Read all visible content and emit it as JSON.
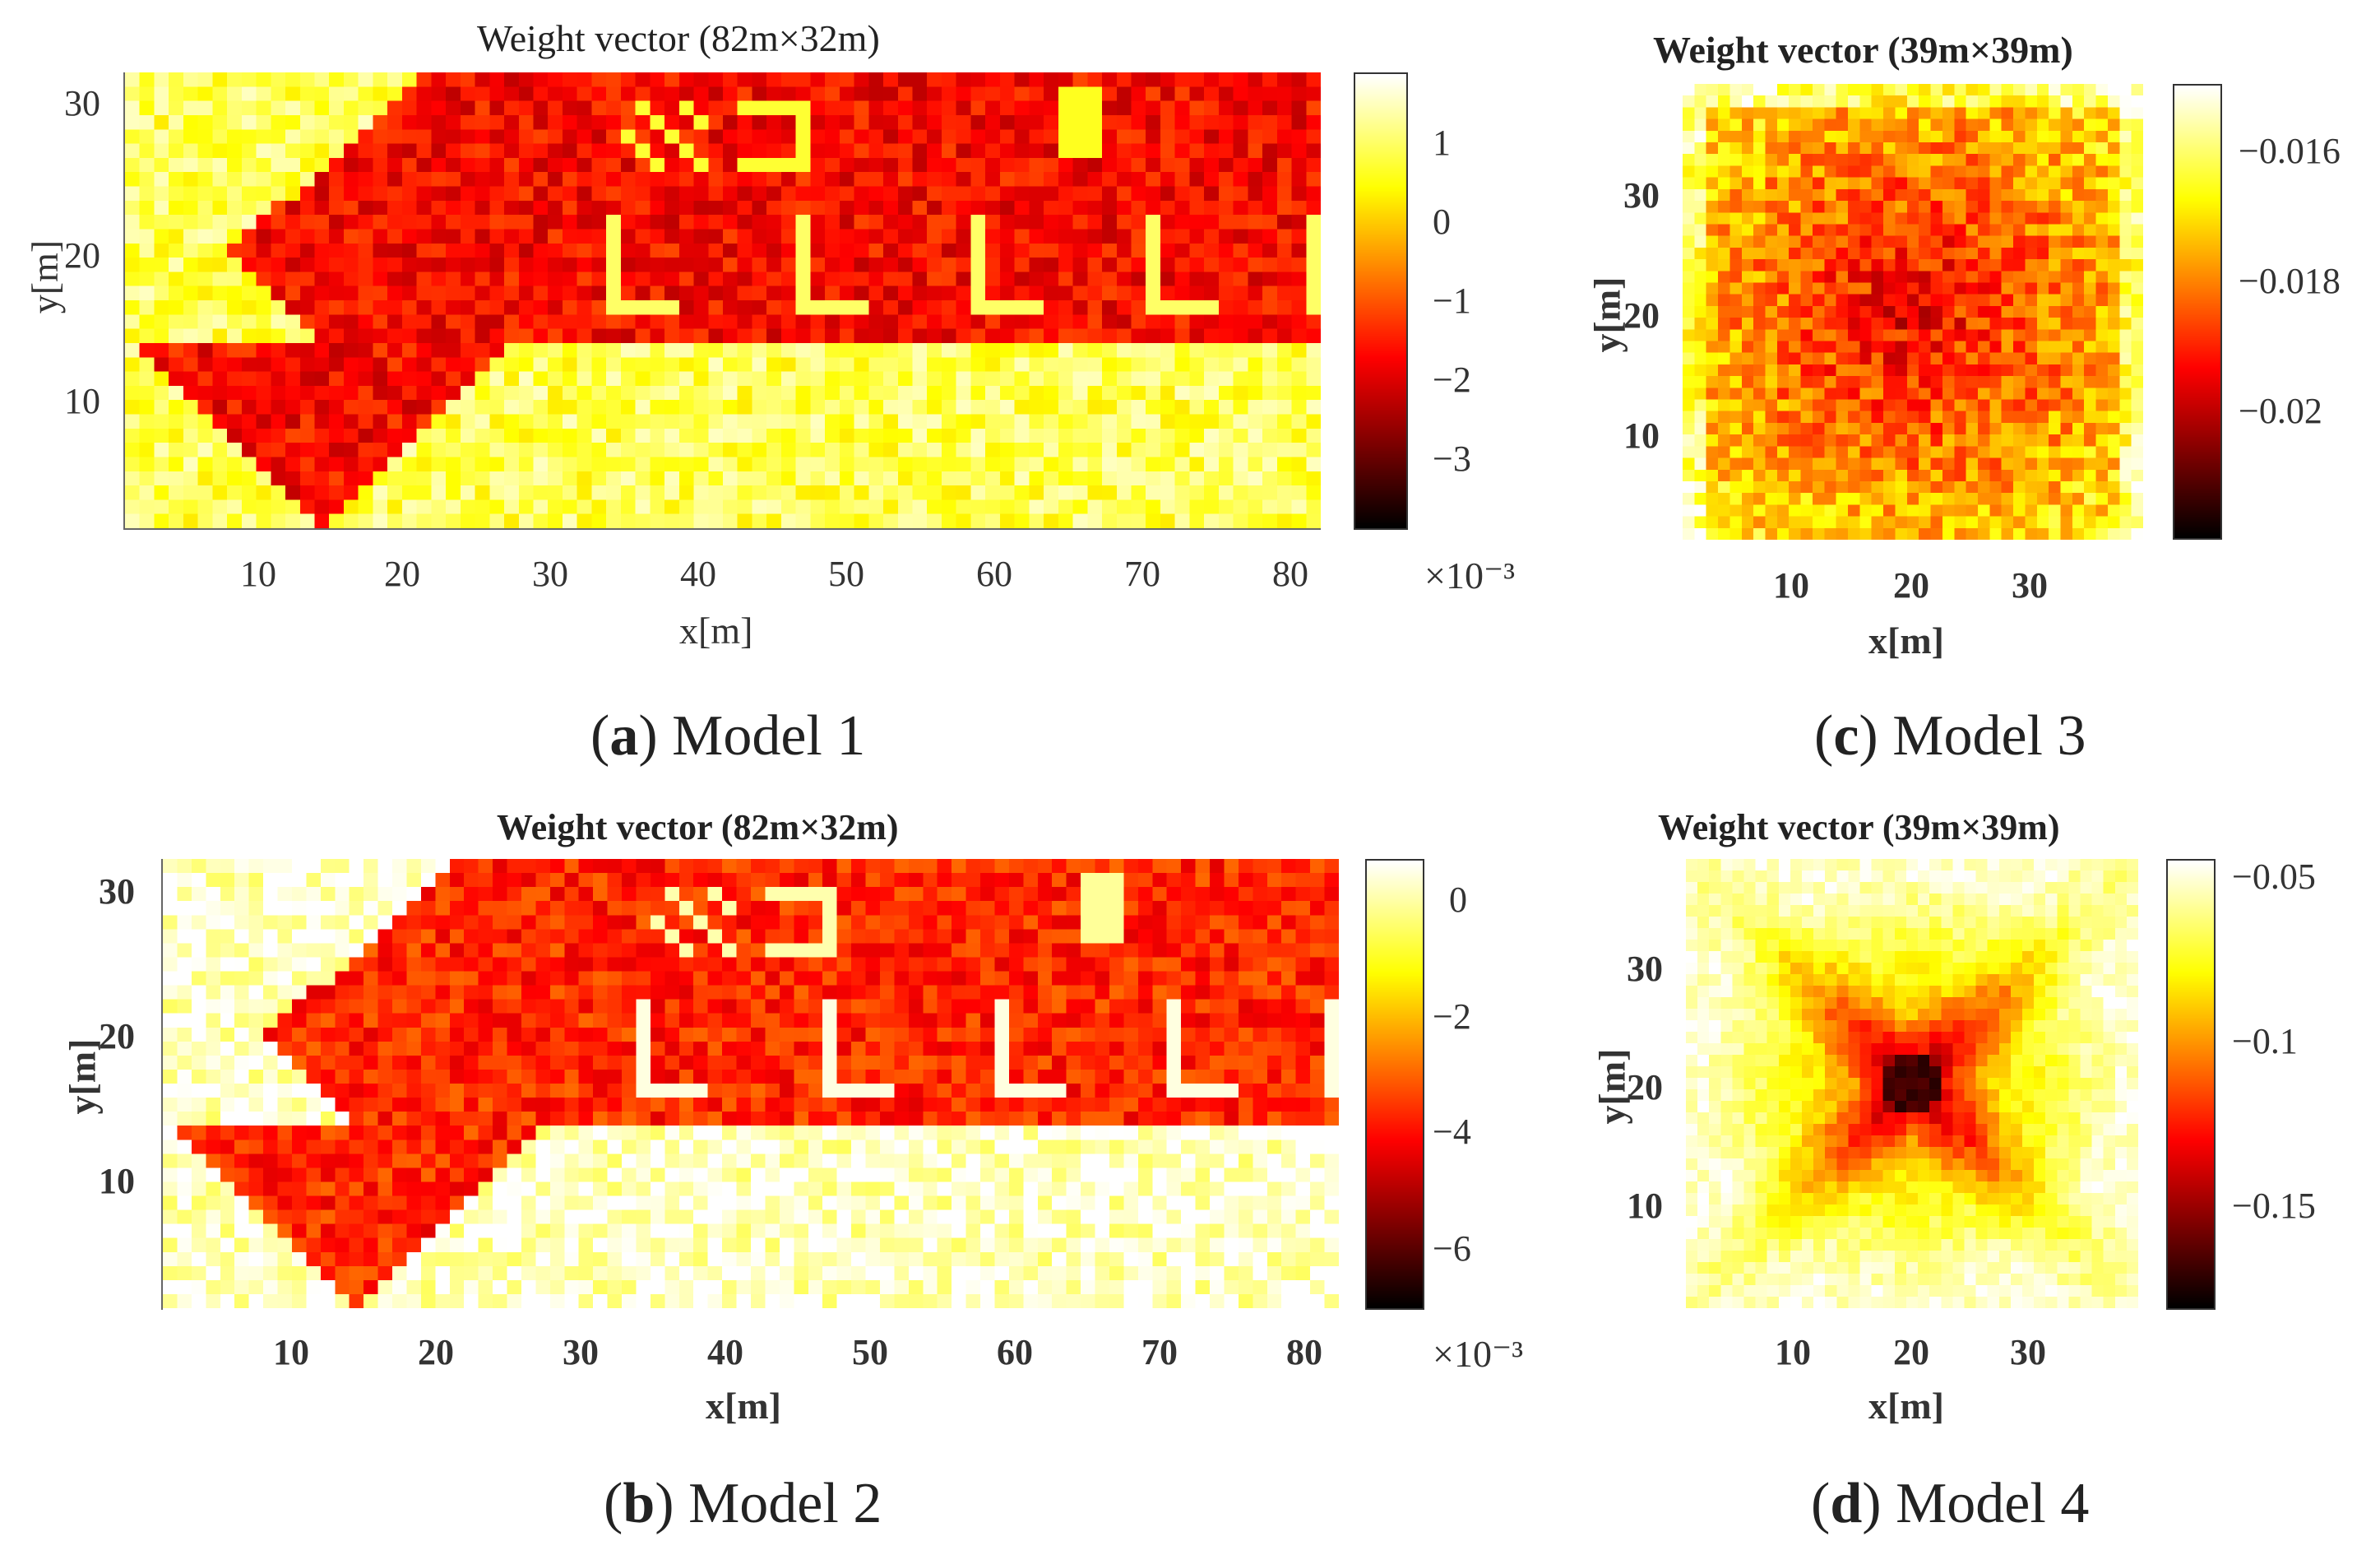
{
  "chart_data": [
    {
      "id": "a",
      "type": "heatmap",
      "title": "Weight vector (82m×32m)",
      "xlabel": "x[m]",
      "ylabel": "y[m]",
      "x_range": [
        1,
        82
      ],
      "y_range": [
        1,
        32
      ],
      "grid_size": [
        82,
        32
      ],
      "x_ticks": [
        10,
        20,
        30,
        40,
        50,
        60,
        70,
        80
      ],
      "y_ticks": [
        10,
        20,
        30
      ],
      "colorbar": {
        "ticks": [
          "1",
          "0",
          "−1",
          "−2",
          "−3"
        ],
        "tick_values": [
          1,
          0,
          -1,
          -2,
          -3
        ],
        "range": [
          -4,
          1.8
        ],
        "scale": "×10⁻³",
        "colormap": "hot"
      },
      "caption_letter": "a",
      "caption_text": " Model 1",
      "pattern": "layout"
    },
    {
      "id": "b",
      "type": "heatmap",
      "title": "Weight vector (82m×32m)",
      "xlabel": "x[m]",
      "ylabel": "y[m]",
      "x_range": [
        1,
        82
      ],
      "y_range": [
        1,
        32
      ],
      "grid_size": [
        82,
        32
      ],
      "x_ticks": [
        10,
        20,
        30,
        40,
        50,
        60,
        70,
        80
      ],
      "y_ticks": [
        10,
        20,
        30
      ],
      "colorbar": {
        "ticks": [
          "0",
          "−2",
          "−4",
          "−6"
        ],
        "tick_values": [
          0,
          -2,
          -4,
          -6
        ],
        "range": [
          -7,
          0.6
        ],
        "scale": "×10⁻³",
        "colormap": "hot"
      },
      "caption_letter": "b",
      "caption_text": " Model 2",
      "pattern": "layout"
    },
    {
      "id": "c",
      "type": "heatmap",
      "title": "Weight vector (39m×39m)",
      "xlabel": "x[m]",
      "ylabel": "y[m]",
      "x_range": [
        1,
        39
      ],
      "y_range": [
        1,
        39
      ],
      "grid_size": [
        39,
        39
      ],
      "x_ticks": [
        10,
        20,
        30
      ],
      "y_ticks": [
        10,
        20,
        30
      ],
      "colorbar": {
        "ticks": [
          "−0.016",
          "−0.018",
          "−0.02"
        ],
        "tick_values": [
          -0.016,
          -0.018,
          -0.02
        ],
        "range": [
          -0.0217,
          -0.0148
        ],
        "scale": "",
        "colormap": "hot"
      },
      "caption_letter": "c",
      "caption_text": " Model 3",
      "pattern": "center_blob"
    },
    {
      "id": "d",
      "type": "heatmap",
      "title": "Weight vector (39m×39m)",
      "xlabel": "x[m]",
      "ylabel": "y[m]",
      "x_range": [
        1,
        39
      ],
      "y_range": [
        1,
        39
      ],
      "grid_size": [
        39,
        39
      ],
      "x_ticks": [
        10,
        20,
        30
      ],
      "y_ticks": [
        10,
        20,
        30
      ],
      "colorbar": {
        "ticks": [
          "−0.05",
          "−0.1",
          "−0.15"
        ],
        "tick_values": [
          -0.05,
          -0.1,
          -0.15
        ],
        "range": [
          -0.18,
          -0.045
        ],
        "scale": "",
        "colormap": "hot"
      },
      "caption_letter": "d",
      "caption_text": " Model 4",
      "pattern": "x_shape"
    }
  ]
}
